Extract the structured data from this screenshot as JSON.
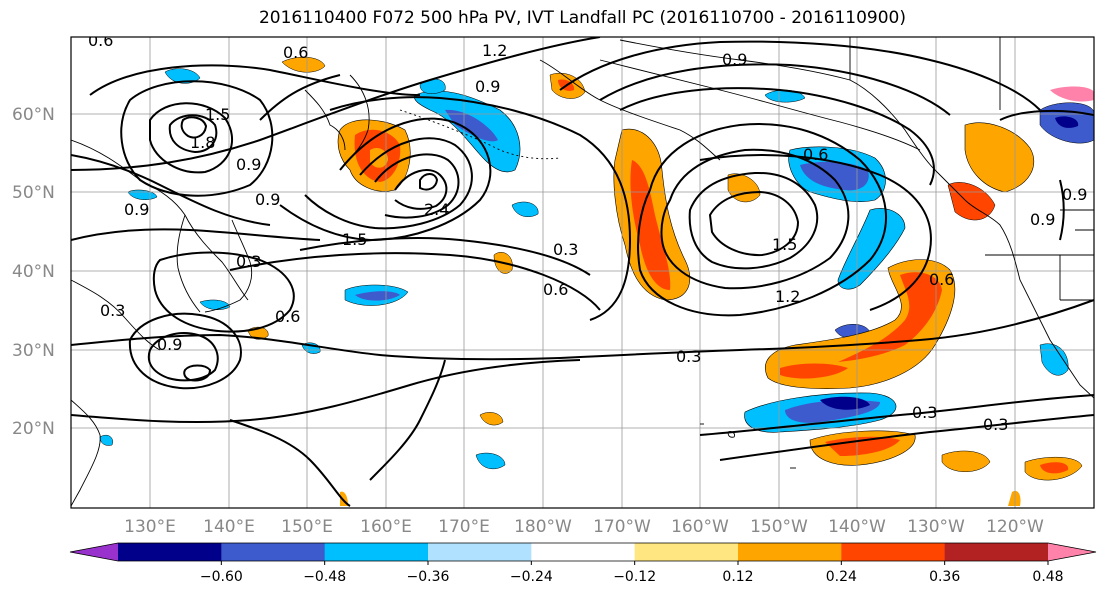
{
  "title": "2016110400 F072 500 hPa PV, IVT Landfall PC (2016110700 - 2016110900)",
  "map": {
    "lat_labels": [
      "60°N",
      "50°N",
      "40°N",
      "30°N",
      "20°N"
    ],
    "lon_labels": [
      "130°E",
      "140°E",
      "150°E",
      "160°E",
      "170°E",
      "180°W",
      "170°W",
      "160°W",
      "150°W",
      "140°W",
      "130°W",
      "120°W"
    ],
    "pv_contour_levels": [
      "0.3",
      "0.6",
      "0.9",
      "1.2",
      "1.5",
      "1.8",
      "2.1",
      "2.4"
    ],
    "contour_labels": [
      {
        "text": "0.6",
        "key": "a"
      },
      {
        "text": "0.6",
        "key": "b"
      },
      {
        "text": "1.2",
        "key": "c"
      },
      {
        "text": "0.9",
        "key": "d"
      },
      {
        "text": "0.9",
        "key": "e"
      },
      {
        "text": "1.5",
        "key": "f"
      },
      {
        "text": "1.8",
        "key": "g"
      },
      {
        "text": "0.9",
        "key": "h"
      },
      {
        "text": "0.9",
        "key": "i"
      },
      {
        "text": "0.3",
        "key": "j"
      },
      {
        "text": "0.6",
        "key": "k"
      },
      {
        "text": "0.3",
        "key": "l"
      },
      {
        "text": "0.9",
        "key": "m"
      },
      {
        "text": "1.5",
        "key": "n"
      },
      {
        "text": "2.4",
        "key": "o"
      },
      {
        "text": "0.3",
        "key": "p"
      },
      {
        "text": "0.6",
        "key": "q"
      },
      {
        "text": "0.6",
        "key": "r"
      },
      {
        "text": "1.5",
        "key": "s"
      },
      {
        "text": "1.2",
        "key": "t"
      },
      {
        "text": "0.3",
        "key": "u"
      },
      {
        "text": "0.6",
        "key": "v"
      },
      {
        "text": "0.9",
        "key": "w"
      },
      {
        "text": "0.3",
        "key": "x"
      },
      {
        "text": "0.3",
        "key": "y"
      },
      {
        "text": "0.9",
        "key": "z"
      },
      {
        "text": "0.9",
        "key": "aa"
      }
    ]
  },
  "colorbar": {
    "ticks": [
      "−0.60",
      "−0.48",
      "−0.36",
      "−0.24",
      "−0.12",
      "0.12",
      "0.24",
      "0.36",
      "0.48",
      "0.60"
    ],
    "colors": [
      "#9932cc",
      "#00008b",
      "#3d5bcc",
      "#00bfff",
      "#b0e2ff",
      "#ffffff",
      "#ffe680",
      "#ffa500",
      "#ff4500",
      "#b22222",
      "#ff82ab"
    ]
  }
}
